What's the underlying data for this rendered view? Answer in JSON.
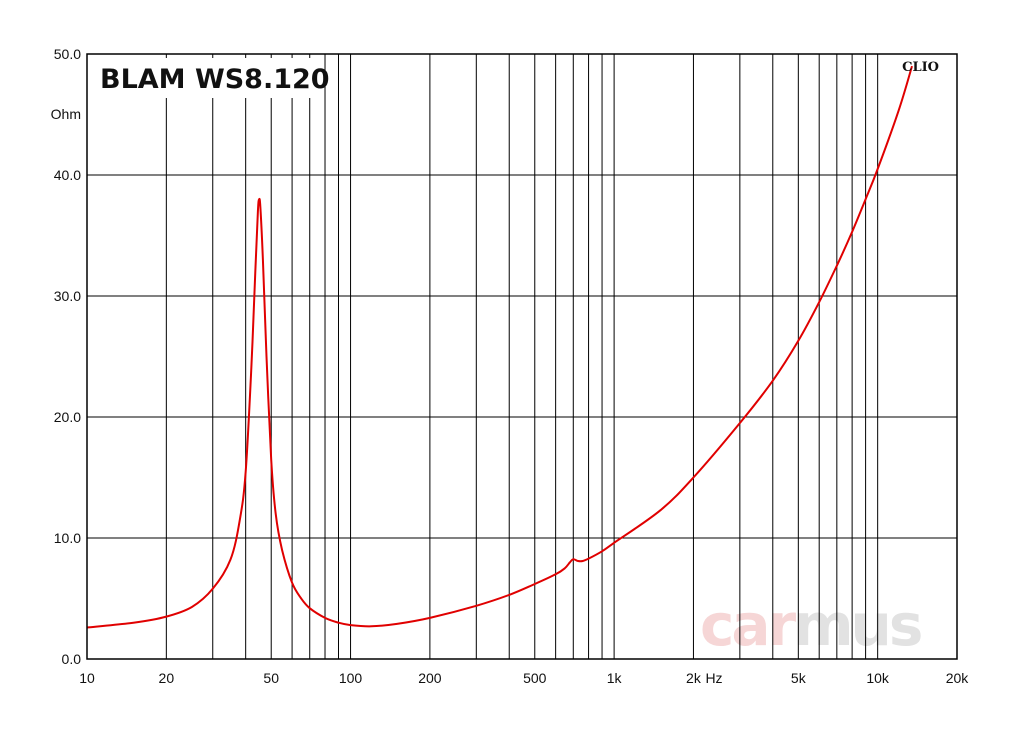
{
  "chart_data": {
    "type": "line",
    "title": "BLAM WS8.120",
    "xlabel": "Hz",
    "ylabel": "Ohm",
    "xscale": "log",
    "xlim": [
      10,
      20000
    ],
    "ylim": [
      0,
      50
    ],
    "grid": true,
    "x_ticks": [
      {
        "value": 10,
        "label": "10"
      },
      {
        "value": 20,
        "label": "20"
      },
      {
        "value": 50,
        "label": "50"
      },
      {
        "value": 100,
        "label": "100"
      },
      {
        "value": 200,
        "label": "200"
      },
      {
        "value": 500,
        "label": "500"
      },
      {
        "value": 1000,
        "label": "1k"
      },
      {
        "value": 2000,
        "label": "2k"
      },
      {
        "value": 5000,
        "label": "5k"
      },
      {
        "value": 10000,
        "label": "10k"
      },
      {
        "value": 20000,
        "label": "20k"
      }
    ],
    "y_ticks": [
      {
        "value": 0,
        "label": "0.0"
      },
      {
        "value": 10,
        "label": "10.0"
      },
      {
        "value": 20,
        "label": "20.0"
      },
      {
        "value": 30,
        "label": "30.0"
      },
      {
        "value": 40,
        "label": "40.0"
      },
      {
        "value": 50,
        "label": "50.0"
      }
    ],
    "series": [
      {
        "color": "#e00000",
        "points": [
          [
            10,
            2.6
          ],
          [
            15,
            3.0
          ],
          [
            20,
            3.5
          ],
          [
            25,
            4.3
          ],
          [
            30,
            5.8
          ],
          [
            35,
            8.2
          ],
          [
            38,
            11.5
          ],
          [
            40,
            15.5
          ],
          [
            42,
            24.0
          ],
          [
            43.5,
            32.0
          ],
          [
            44.5,
            37.0
          ],
          [
            45,
            38.0
          ],
          [
            45.5,
            37.3
          ],
          [
            46.5,
            33.0
          ],
          [
            48,
            25.0
          ],
          [
            50,
            16.5
          ],
          [
            52,
            12.0
          ],
          [
            55,
            9.0
          ],
          [
            60,
            6.3
          ],
          [
            65,
            5.0
          ],
          [
            70,
            4.2
          ],
          [
            80,
            3.4
          ],
          [
            90,
            3.0
          ],
          [
            100,
            2.8
          ],
          [
            120,
            2.7
          ],
          [
            150,
            2.9
          ],
          [
            200,
            3.4
          ],
          [
            300,
            4.4
          ],
          [
            400,
            5.3
          ],
          [
            500,
            6.2
          ],
          [
            600,
            7.0
          ],
          [
            650,
            7.5
          ],
          [
            680,
            8.0
          ],
          [
            700,
            8.25
          ],
          [
            730,
            8.1
          ],
          [
            760,
            8.1
          ],
          [
            800,
            8.3
          ],
          [
            900,
            8.9
          ],
          [
            1000,
            9.6
          ],
          [
            1500,
            12.3
          ],
          [
            2000,
            15.0
          ],
          [
            3000,
            19.5
          ],
          [
            4000,
            23.0
          ],
          [
            5000,
            26.3
          ],
          [
            6000,
            29.5
          ],
          [
            7000,
            32.5
          ],
          [
            8000,
            35.3
          ],
          [
            9000,
            38.0
          ],
          [
            10000,
            40.5
          ],
          [
            12000,
            45.3
          ],
          [
            13500,
            49.0
          ]
        ]
      }
    ]
  },
  "branding": {
    "software": "CLIO",
    "watermark_part1": "car",
    "watermark_part2": "mus",
    "watermark_color1": "#f6d6d6",
    "watermark_color2": "#e2e2e2"
  }
}
